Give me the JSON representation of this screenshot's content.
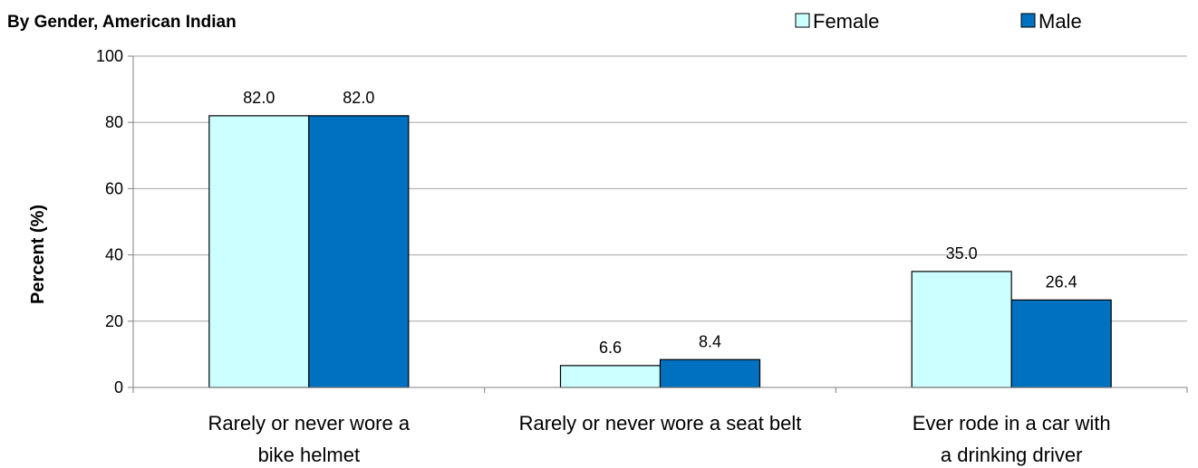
{
  "chart_data": {
    "type": "bar",
    "title": "By Gender, American Indian",
    "ylabel": "Percent (%)",
    "xlabel": "",
    "ylim": [
      0,
      100
    ],
    "yticks": [
      0,
      20,
      40,
      60,
      80,
      100
    ],
    "grid": true,
    "legend_position": "top-right",
    "categories": [
      [
        "Rarely or never wore a",
        "bike helmet"
      ],
      [
        "Rarely or never wore a seat belt"
      ],
      [
        "Ever rode in a car with",
        "a drinking driver"
      ]
    ],
    "series": [
      {
        "name": "Female",
        "color": "#ccffff",
        "values": [
          82.0,
          6.6,
          35.0
        ],
        "labels": [
          "82.0",
          "6.6",
          "35.0"
        ]
      },
      {
        "name": "Male",
        "color": "#0070c0",
        "values": [
          82.0,
          8.4,
          26.4
        ],
        "labels": [
          "82.0",
          "8.4",
          "26.4"
        ]
      }
    ]
  }
}
